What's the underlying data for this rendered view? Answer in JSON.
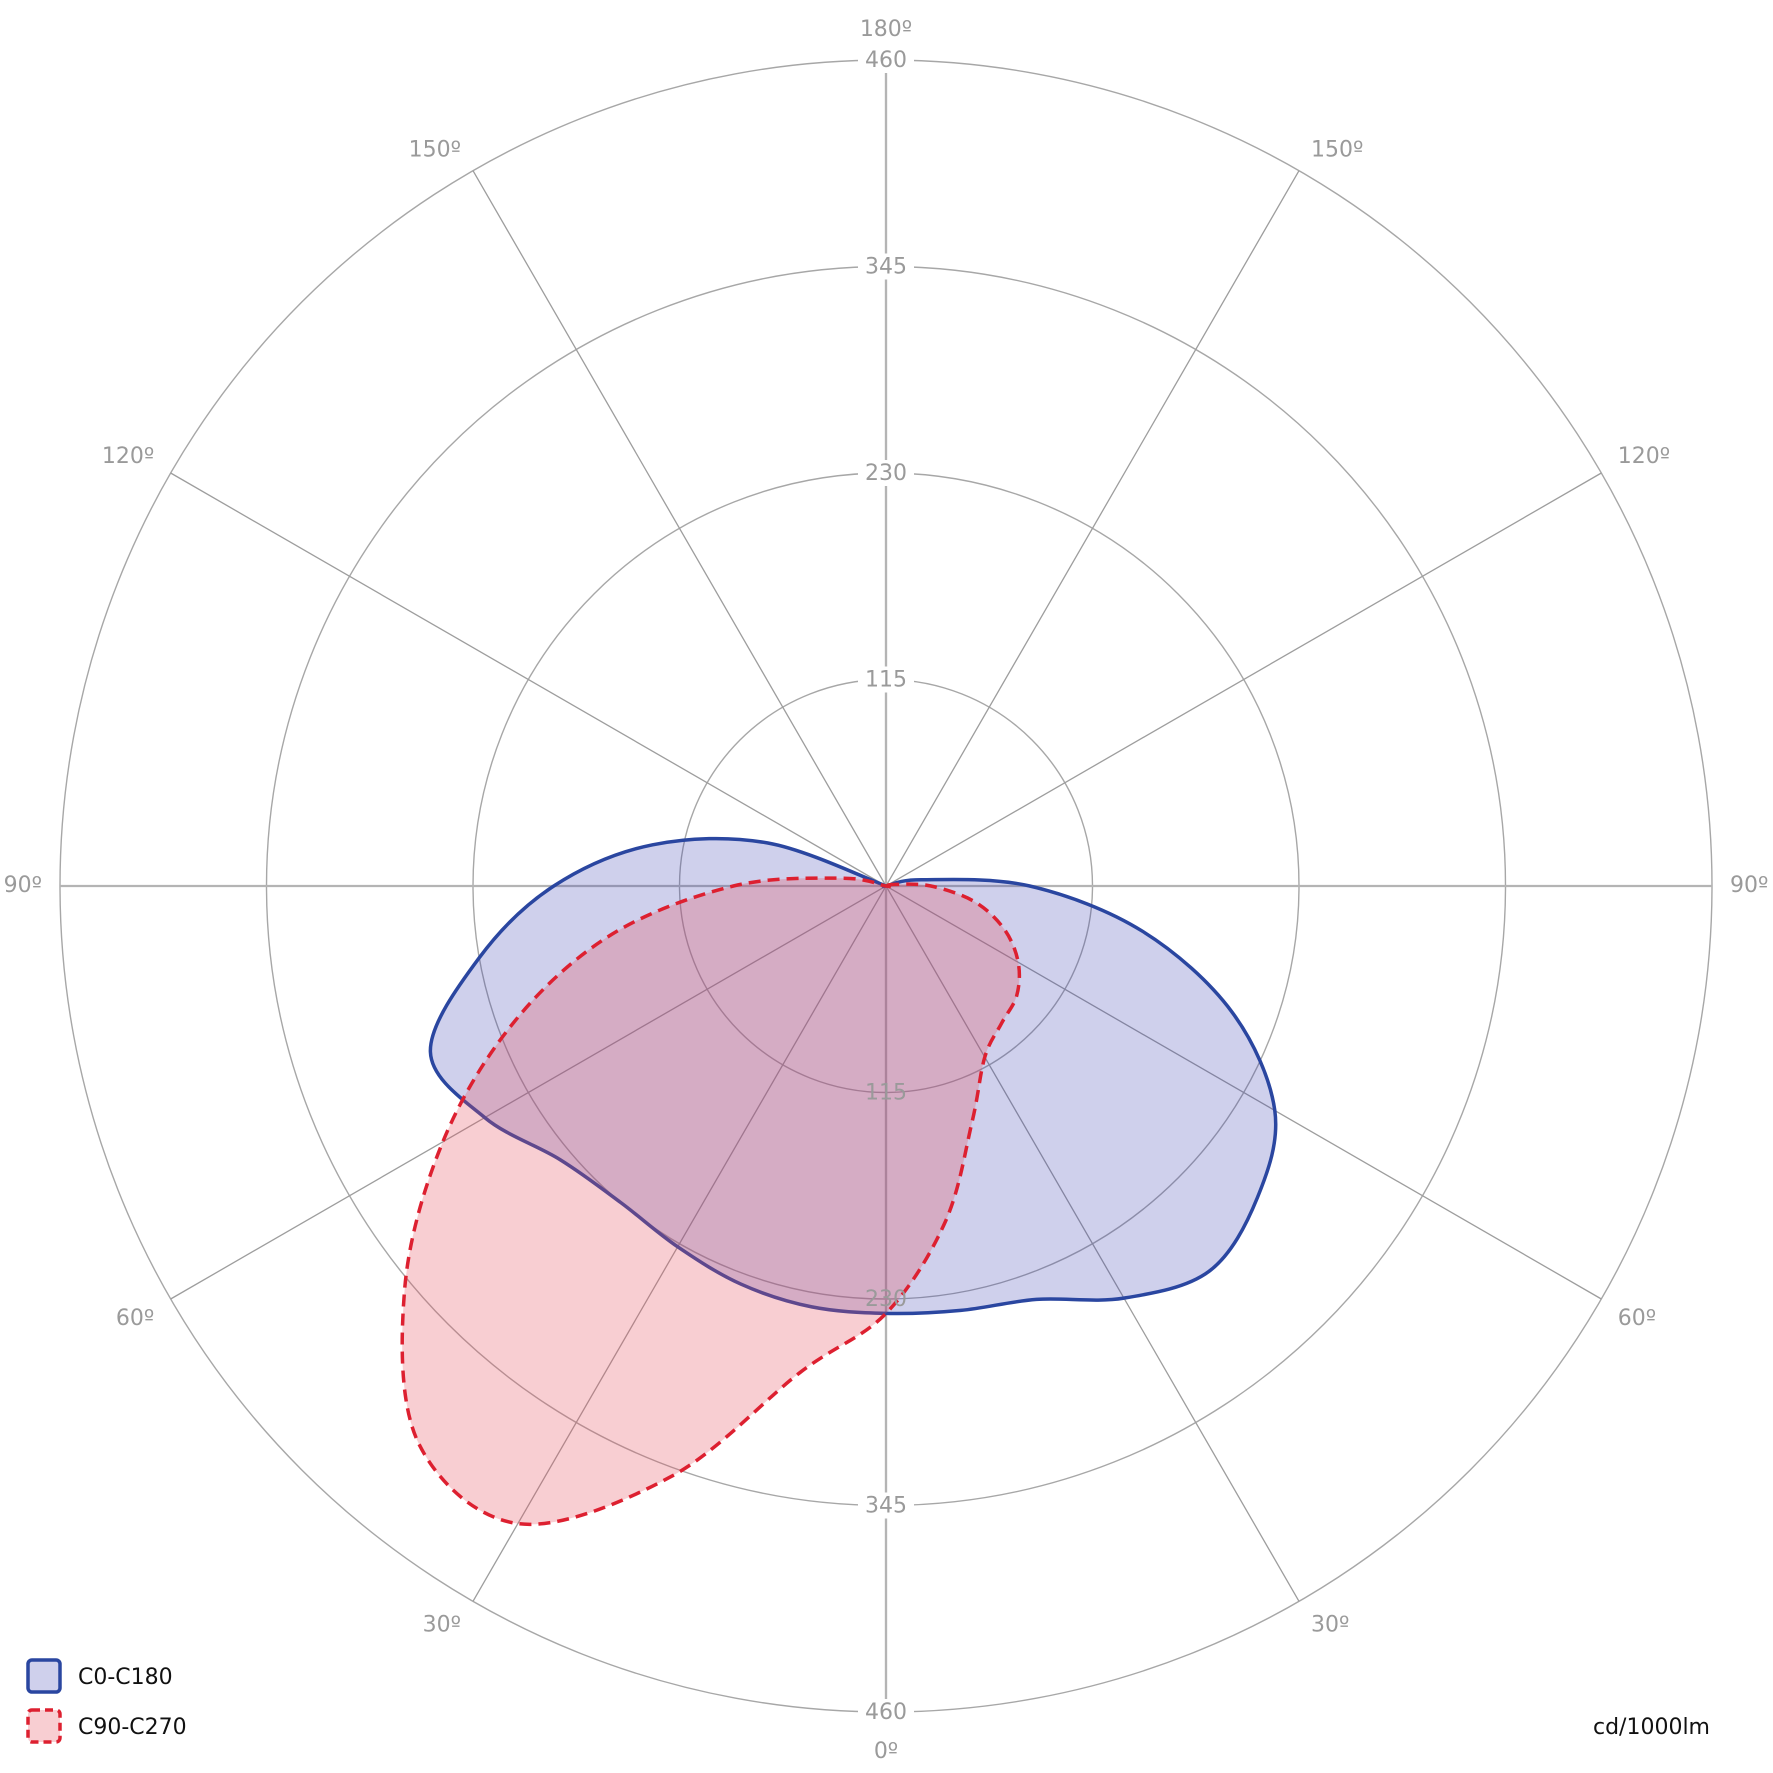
{
  "chart_data": {
    "type": "polar",
    "unit": "cd/1000lm",
    "rmax": 460,
    "ring_values": [
      115,
      230,
      345,
      460
    ],
    "ring_labels": [
      "115",
      "230",
      "345",
      "460"
    ],
    "angle_labels": {
      "top": "180º",
      "bottom": "0º",
      "left": [
        "150º",
        "120º",
        "90º",
        "60º",
        "30º"
      ],
      "right": [
        "150º",
        "120º",
        "90º",
        "60º",
        "30º"
      ]
    },
    "grid": true,
    "legend": "bottom-left",
    "series": [
      {
        "name": "C0-C180",
        "color": "#2a46a0",
        "fill": "rgba(55,60,175,0.24)",
        "dash": "solid",
        "left_values": [
          238,
          238,
          236,
          232,
          230,
          237,
          258,
          270,
          230,
          185,
          132,
          70,
          0
        ],
        "right_values": [
          238,
          240,
          245,
          265,
          280,
          270,
          250,
          205,
          145,
          80,
          20,
          0,
          0
        ]
      },
      {
        "name": "C90-C270",
        "color": "#dd2030",
        "fill": "rgba(230,80,95,0.28)",
        "dash": "dashed",
        "left_values": [
          238,
          275,
          350,
          410,
          405,
          350,
          285,
          220,
          155,
          85,
          25,
          0,
          0
        ],
        "right_values": [
          238,
          190,
          140,
          110,
          100,
          95,
          85,
          70,
          50,
          25,
          5,
          0,
          0
        ]
      }
    ],
    "gamma_angles": [
      0,
      10,
      20,
      30,
      40,
      50,
      60,
      70,
      80,
      90,
      100,
      110,
      120
    ]
  }
}
